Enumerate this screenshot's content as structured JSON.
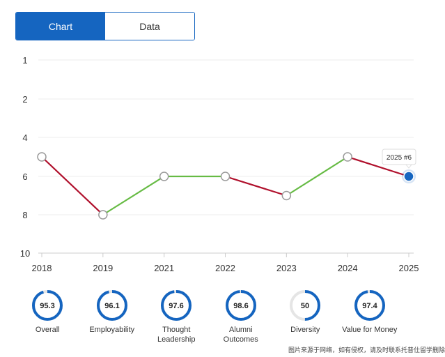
{
  "tabs": [
    {
      "label": "Chart",
      "active": true
    },
    {
      "label": "Data",
      "active": false
    }
  ],
  "chart_data": {
    "type": "line",
    "x": [
      "2018",
      "2019",
      "2021",
      "2022",
      "2023",
      "2024",
      "2025"
    ],
    "values": [
      5,
      8,
      6,
      6,
      7,
      5,
      6
    ],
    "yticks": [
      "1",
      "2",
      "4",
      "6",
      "8",
      "10"
    ],
    "ylim": [
      1,
      10
    ],
    "inverted_y": true,
    "tooltip": "2025 #6",
    "colors": {
      "improve": "#66bb44",
      "decline": "#b0102c",
      "highlight": "#1565c0"
    }
  },
  "metrics": [
    {
      "value": "95.3",
      "label": "Overall",
      "score": 95.3
    },
    {
      "value": "96.1",
      "label": "Employability",
      "score": 96.1
    },
    {
      "value": "97.6",
      "label": "Thought Leadership",
      "score": 97.6
    },
    {
      "value": "98.6",
      "label": "Alumni Outcomes",
      "score": 98.6
    },
    {
      "value": "50",
      "label": "Diversity",
      "score": 50
    },
    {
      "value": "97.4",
      "label": "Value for Money",
      "score": 97.4
    }
  ],
  "footer_note": "图片来源于网络，如有侵权，请及时联系托普仕留学删除"
}
